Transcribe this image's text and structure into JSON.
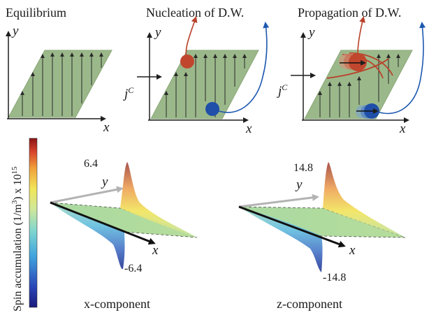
{
  "panels": {
    "equilibrium": {
      "title": "Equilibrium",
      "x_axis": "x",
      "y_axis": "y"
    },
    "nucleation": {
      "title": "Nucleation of D.W.",
      "x_axis": "x",
      "y_axis": "y",
      "current_base": "j",
      "current_sup": "C"
    },
    "propagation": {
      "title": "Propagation of D.W.",
      "x_axis": "x",
      "y_axis": "y",
      "current_base": "j",
      "current_sup": "C"
    }
  },
  "spin_plots": {
    "colorbar_label": "Spin accumulation (1/m",
    "colorbar_label_exp": "3",
    "colorbar_label_tail": ") x 10",
    "colorbar_label_exp2": "15",
    "x_component": {
      "label": "x-component",
      "max": "6.4",
      "min": "-6.4",
      "x_axis": "x",
      "y_axis": "y"
    },
    "z_component": {
      "label": "z-component",
      "max": "14.8",
      "min": "-14.8",
      "x_axis": "x",
      "y_axis": "y"
    }
  },
  "colors": {
    "sample_fill": "#9bb88a",
    "arrow": "#1f1f1f",
    "nucleus_red": "#c0472e",
    "nucleus_blue": "#1f4fa8",
    "path_red": "#b8412a",
    "path_blue": "#1d58b0"
  }
}
